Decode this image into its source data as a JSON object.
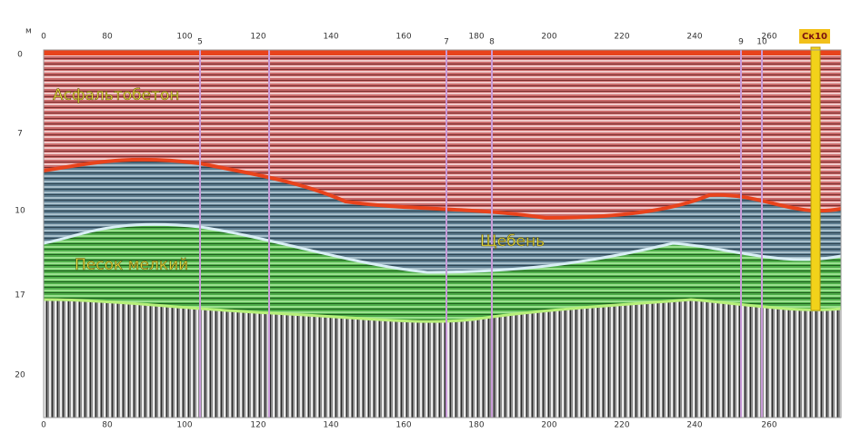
{
  "axis_unit": "м",
  "top_ticks": [
    "0",
    "80",
    "100",
    "120",
    "140",
    "160",
    "180",
    "200",
    "220",
    "240",
    "260"
  ],
  "bottom_ticks": [
    "0",
    "80",
    "100",
    "120",
    "140",
    "160",
    "180",
    "200",
    "220",
    "240",
    "260"
  ],
  "left_ticks": [
    "0",
    "7",
    "10",
    "17",
    "20"
  ],
  "markers": [
    "5",
    "7",
    "8",
    "9",
    "10"
  ],
  "layers": {
    "asphalt": "Асфальтобетон",
    "gravel": "Щебень",
    "sand": "Песок мелкий"
  },
  "well": "Ск10"
}
